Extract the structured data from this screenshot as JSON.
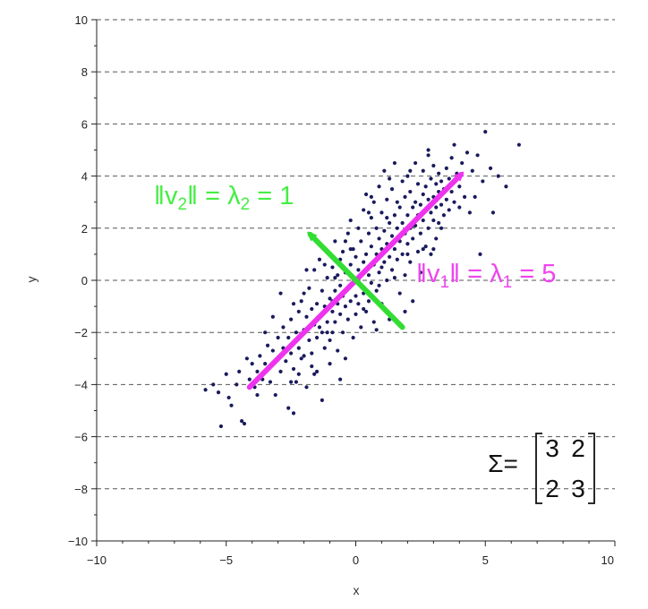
{
  "chart_data": {
    "type": "scatter",
    "title": "",
    "xlabel": "x",
    "ylabel": "y",
    "xlim": [
      -10,
      10
    ],
    "ylim": [
      -10,
      10
    ],
    "x_ticks": [
      -10,
      -5,
      0,
      5,
      10
    ],
    "y_ticks": [
      -10,
      -8,
      -6,
      -4,
      -2,
      0,
      2,
      4,
      6,
      8,
      10
    ],
    "x_tick_labels": [
      "−10",
      "−5",
      "0",
      "5",
      "10"
    ],
    "y_tick_labels": [
      "−10",
      "−8",
      "−6",
      "−4",
      "−2",
      "0",
      "2",
      "4",
      "6",
      "8",
      "10"
    ],
    "grid": "horizontal dashed",
    "point_color": "#1a1a5e",
    "points": [
      [
        -5.8,
        -4.2
      ],
      [
        -5.5,
        -4.0
      ],
      [
        -5.3,
        -4.3
      ],
      [
        -5.2,
        -5.6
      ],
      [
        -5.0,
        -3.6
      ],
      [
        -4.8,
        -4.8
      ],
      [
        -4.6,
        -4.0
      ],
      [
        -4.5,
        -3.5
      ],
      [
        -4.4,
        -5.4
      ],
      [
        -4.3,
        -5.5
      ],
      [
        -4.1,
        -3.8
      ],
      [
        -4.0,
        -3.2
      ],
      [
        -3.9,
        -4.1
      ],
      [
        -3.8,
        -3.5
      ],
      [
        -3.7,
        -2.9
      ],
      [
        -3.6,
        -3.8
      ],
      [
        -3.5,
        -3.2
      ],
      [
        -3.4,
        -2.5
      ],
      [
        -3.3,
        -3.9
      ],
      [
        -3.2,
        -2.7
      ],
      [
        -3.1,
        -4.4
      ],
      [
        -3.0,
        -3.0
      ],
      [
        -3.0,
        -2.2
      ],
      [
        -2.9,
        -3.5
      ],
      [
        -2.8,
        -2.6
      ],
      [
        -2.8,
        -1.8
      ],
      [
        -2.7,
        -3.1
      ],
      [
        -2.6,
        -2.2
      ],
      [
        -2.6,
        -4.9
      ],
      [
        -2.5,
        -2.8
      ],
      [
        -2.5,
        -1.5
      ],
      [
        -2.4,
        -3.4
      ],
      [
        -2.4,
        -5.1
      ],
      [
        -2.3,
        -2.0
      ],
      [
        -2.3,
        -3.9
      ],
      [
        -2.2,
        -1.2
      ],
      [
        -2.2,
        -2.6
      ],
      [
        -2.1,
        -3.0
      ],
      [
        -2.1,
        -0.8
      ],
      [
        -2.0,
        -1.9
      ],
      [
        -2.0,
        -2.9
      ],
      [
        -1.9,
        -1.4
      ],
      [
        -1.9,
        -4.1
      ],
      [
        -1.8,
        -2.3
      ],
      [
        -1.8,
        -0.3
      ],
      [
        -1.7,
        -1.1
      ],
      [
        -1.7,
        -2.8
      ],
      [
        -1.6,
        -1.7
      ],
      [
        -1.6,
        0.4
      ],
      [
        -1.5,
        -2.2
      ],
      [
        -1.5,
        -0.9
      ],
      [
        -1.5,
        -3.5
      ],
      [
        -1.4,
        -1.4
      ],
      [
        -1.4,
        0.8
      ],
      [
        -1.3,
        -2.0
      ],
      [
        -1.3,
        -0.4
      ],
      [
        -1.3,
        -4.6
      ],
      [
        -1.2,
        -1.0
      ],
      [
        -1.2,
        -2.6
      ],
      [
        -1.2,
        1.2
      ],
      [
        -1.1,
        -1.6
      ],
      [
        -1.1,
        0.1
      ],
      [
        -1.0,
        -0.7
      ],
      [
        -1.0,
        -2.3
      ],
      [
        -1.0,
        -3.2
      ],
      [
        -0.9,
        -1.2
      ],
      [
        -0.9,
        0.5
      ],
      [
        -0.9,
        -2.0
      ],
      [
        -0.8,
        -0.4
      ],
      [
        -0.8,
        -1.6
      ],
      [
        -0.8,
        1.5
      ],
      [
        -0.7,
        -0.9
      ],
      [
        -0.7,
        -2.7
      ],
      [
        -0.7,
        0.2
      ],
      [
        -0.6,
        -1.3
      ],
      [
        -0.6,
        0.8
      ],
      [
        -0.6,
        -0.2
      ],
      [
        -0.5,
        -2.0
      ],
      [
        -0.5,
        -0.6
      ],
      [
        -0.5,
        1.1
      ],
      [
        -0.4,
        -1.0
      ],
      [
        -0.4,
        0.3
      ],
      [
        -0.4,
        -3.0
      ],
      [
        -0.3,
        -0.3
      ],
      [
        -0.3,
        1.8
      ],
      [
        -0.3,
        -1.5
      ],
      [
        -0.2,
        0.6
      ],
      [
        -0.2,
        -0.8
      ],
      [
        -0.2,
        2.3
      ],
      [
        -0.1,
        -0.1
      ],
      [
        -0.1,
        -2.2
      ],
      [
        -0.1,
        1.2
      ],
      [
        0.0,
        -0.6
      ],
      [
        0.0,
        0.9
      ],
      [
        0.0,
        -1.3
      ],
      [
        0.1,
        0.4
      ],
      [
        0.1,
        2.0
      ],
      [
        0.1,
        -0.9
      ],
      [
        0.2,
        -0.2
      ],
      [
        0.2,
        1.5
      ],
      [
        0.2,
        -1.8
      ],
      [
        0.3,
        0.7
      ],
      [
        0.3,
        2.7
      ],
      [
        0.3,
        -0.5
      ],
      [
        0.4,
        1.0
      ],
      [
        0.4,
        -1.2
      ],
      [
        0.4,
        3.3
      ],
      [
        0.5,
        0.2
      ],
      [
        0.5,
        1.8
      ],
      [
        0.5,
        -0.8
      ],
      [
        0.6,
        1.3
      ],
      [
        0.6,
        -0.1
      ],
      [
        0.6,
        2.4
      ],
      [
        0.7,
        0.6
      ],
      [
        0.7,
        -1.6
      ],
      [
        0.7,
        3.0
      ],
      [
        0.8,
        1.0
      ],
      [
        0.8,
        2.0
      ],
      [
        0.8,
        -0.4
      ],
      [
        0.9,
        1.6
      ],
      [
        0.9,
        0.3
      ],
      [
        0.9,
        3.6
      ],
      [
        1.0,
        1.2
      ],
      [
        1.0,
        2.6
      ],
      [
        1.0,
        -0.9
      ],
      [
        1.1,
        0.7
      ],
      [
        1.1,
        1.9
      ],
      [
        1.1,
        4.2
      ],
      [
        1.2,
        1.4
      ],
      [
        1.2,
        3.1
      ],
      [
        1.2,
        0.0
      ],
      [
        1.3,
        2.2
      ],
      [
        1.3,
        0.9
      ],
      [
        1.3,
        -1.5
      ],
      [
        1.4,
        1.7
      ],
      [
        1.4,
        3.5
      ],
      [
        1.4,
        0.4
      ],
      [
        1.5,
        2.5
      ],
      [
        1.5,
        1.2
      ],
      [
        1.5,
        4.5
      ],
      [
        1.6,
        2.0
      ],
      [
        1.6,
        0.8
      ],
      [
        1.6,
        3.0
      ],
      [
        1.7,
        1.5
      ],
      [
        1.7,
        2.8
      ],
      [
        1.7,
        -0.5
      ],
      [
        1.8,
        2.2
      ],
      [
        1.8,
        3.8
      ],
      [
        1.8,
        1.0
      ],
      [
        1.9,
        1.8
      ],
      [
        1.9,
        3.2
      ],
      [
        1.9,
        0.2
      ],
      [
        2.0,
        2.5
      ],
      [
        2.0,
        1.4
      ],
      [
        2.0,
        4.0
      ],
      [
        2.1,
        2.0
      ],
      [
        2.1,
        3.4
      ],
      [
        2.1,
        0.7
      ],
      [
        2.2,
        2.8
      ],
      [
        2.2,
        1.6
      ],
      [
        2.2,
        -0.8
      ],
      [
        2.3,
        3.0
      ],
      [
        2.3,
        2.1
      ],
      [
        2.3,
        4.5
      ],
      [
        2.4,
        2.5
      ],
      [
        2.4,
        1.1
      ],
      [
        2.4,
        3.7
      ],
      [
        2.5,
        2.9
      ],
      [
        2.5,
        1.8
      ],
      [
        2.5,
        0.3
      ],
      [
        2.6,
        3.3
      ],
      [
        2.6,
        2.3
      ],
      [
        2.6,
        4.2
      ],
      [
        2.7,
        2.7
      ],
      [
        2.7,
        1.3
      ],
      [
        2.7,
        3.6
      ],
      [
        2.8,
        3.1
      ],
      [
        2.8,
        2.0
      ],
      [
        2.8,
        4.8
      ],
      [
        2.9,
        2.6
      ],
      [
        2.9,
        3.9
      ],
      [
        2.9,
        1.0
      ],
      [
        3.0,
        3.2
      ],
      [
        3.0,
        2.3
      ],
      [
        3.0,
        4.4
      ],
      [
        3.1,
        2.8
      ],
      [
        3.1,
        3.7
      ],
      [
        3.1,
        1.6
      ],
      [
        3.2,
        3.4
      ],
      [
        3.2,
        2.2
      ],
      [
        3.2,
        4.1
      ],
      [
        3.3,
        2.9
      ],
      [
        3.3,
        3.8
      ],
      [
        3.4,
        3.5
      ],
      [
        3.4,
        2.5
      ],
      [
        3.5,
        3.1
      ],
      [
        3.5,
        4.3
      ],
      [
        3.6,
        3.9
      ],
      [
        3.6,
        2.7
      ],
      [
        3.7,
        3.4
      ],
      [
        3.7,
        4.7
      ],
      [
        3.8,
        3.0
      ],
      [
        3.8,
        5.2
      ],
      [
        3.9,
        4.1
      ],
      [
        4.0,
        3.6
      ],
      [
        4.1,
        4.5
      ],
      [
        4.2,
        3.2
      ],
      [
        4.3,
        4.9
      ],
      [
        4.4,
        2.6
      ],
      [
        4.5,
        4.2
      ],
      [
        4.7,
        4.8
      ],
      [
        5.0,
        5.7
      ],
      [
        5.2,
        4.3
      ],
      [
        5.5,
        4.0
      ],
      [
        6.3,
        5.2
      ],
      [
        5.8,
        3.6
      ],
      [
        5.3,
        2.6
      ],
      [
        4.8,
        1.0
      ],
      [
        4.6,
        3.2
      ],
      [
        4.9,
        3.8
      ],
      [
        -3.5,
        -2.0
      ],
      [
        -2.9,
        -0.5
      ],
      [
        -1.6,
        -3.6
      ],
      [
        -0.6,
        -3.8
      ],
      [
        0.8,
        -1.9
      ],
      [
        1.9,
        -1.2
      ],
      [
        2.2,
        2.1
      ],
      [
        -2.4,
        -0.9
      ],
      [
        -1.1,
        -2.0
      ],
      [
        0.6,
        3.2
      ],
      [
        -0.2,
        1.2
      ],
      [
        0.9,
        -0.2
      ],
      [
        1.5,
        0.1
      ],
      [
        -0.8,
        0.1
      ],
      [
        -2.0,
        -0.5
      ],
      [
        1.2,
        2.4
      ],
      [
        2.6,
        1.2
      ],
      [
        3.3,
        2.0
      ],
      [
        -1.4,
        -1.8
      ],
      [
        0.3,
        -1.1
      ],
      [
        -3.8,
        -4.4
      ],
      [
        -4.2,
        -3.0
      ],
      [
        -4.9,
        -4.5
      ],
      [
        -2.2,
        -3.6
      ],
      [
        -0.9,
        -0.8
      ],
      [
        0.1,
        0.0
      ],
      [
        1.0,
        0.5
      ],
      [
        2.0,
        1.0
      ],
      [
        3.0,
        1.2
      ],
      [
        4.0,
        2.8
      ],
      [
        -1.9,
        0.4
      ],
      [
        -1.2,
        0.6
      ],
      [
        -0.4,
        1.5
      ],
      [
        0.5,
        2.6
      ],
      [
        1.3,
        3.9
      ],
      [
        2.1,
        4.2
      ],
      [
        2.8,
        5.0
      ],
      [
        -3.2,
        -1.4
      ],
      [
        -2.5,
        -3.9
      ],
      [
        -1.7,
        -3.3
      ]
    ],
    "eigenvectors": [
      {
        "label": "v1",
        "from": [
          -4.1,
          -4.1
        ],
        "to": [
          4.3,
          4.3
        ],
        "color": "#ee33ee"
      },
      {
        "label": "v2",
        "from": [
          1.8,
          -1.8
        ],
        "to": [
          -2.0,
          2.0
        ],
        "color": "#33dd33"
      }
    ],
    "annotations": {
      "v2_text": {
        "norm": "‖v",
        "sub1": "2",
        "mid": "‖ = λ",
        "sub2": "2",
        "rest": " = 1"
      },
      "v1_text": {
        "norm": "‖v",
        "sub1": "1",
        "mid": "‖ = λ",
        "sub2": "1",
        "rest": " = 5"
      },
      "sigma": {
        "symbol": "Σ=",
        "matrix": [
          [
            "3",
            "2"
          ],
          [
            "2",
            "3"
          ]
        ]
      }
    }
  }
}
